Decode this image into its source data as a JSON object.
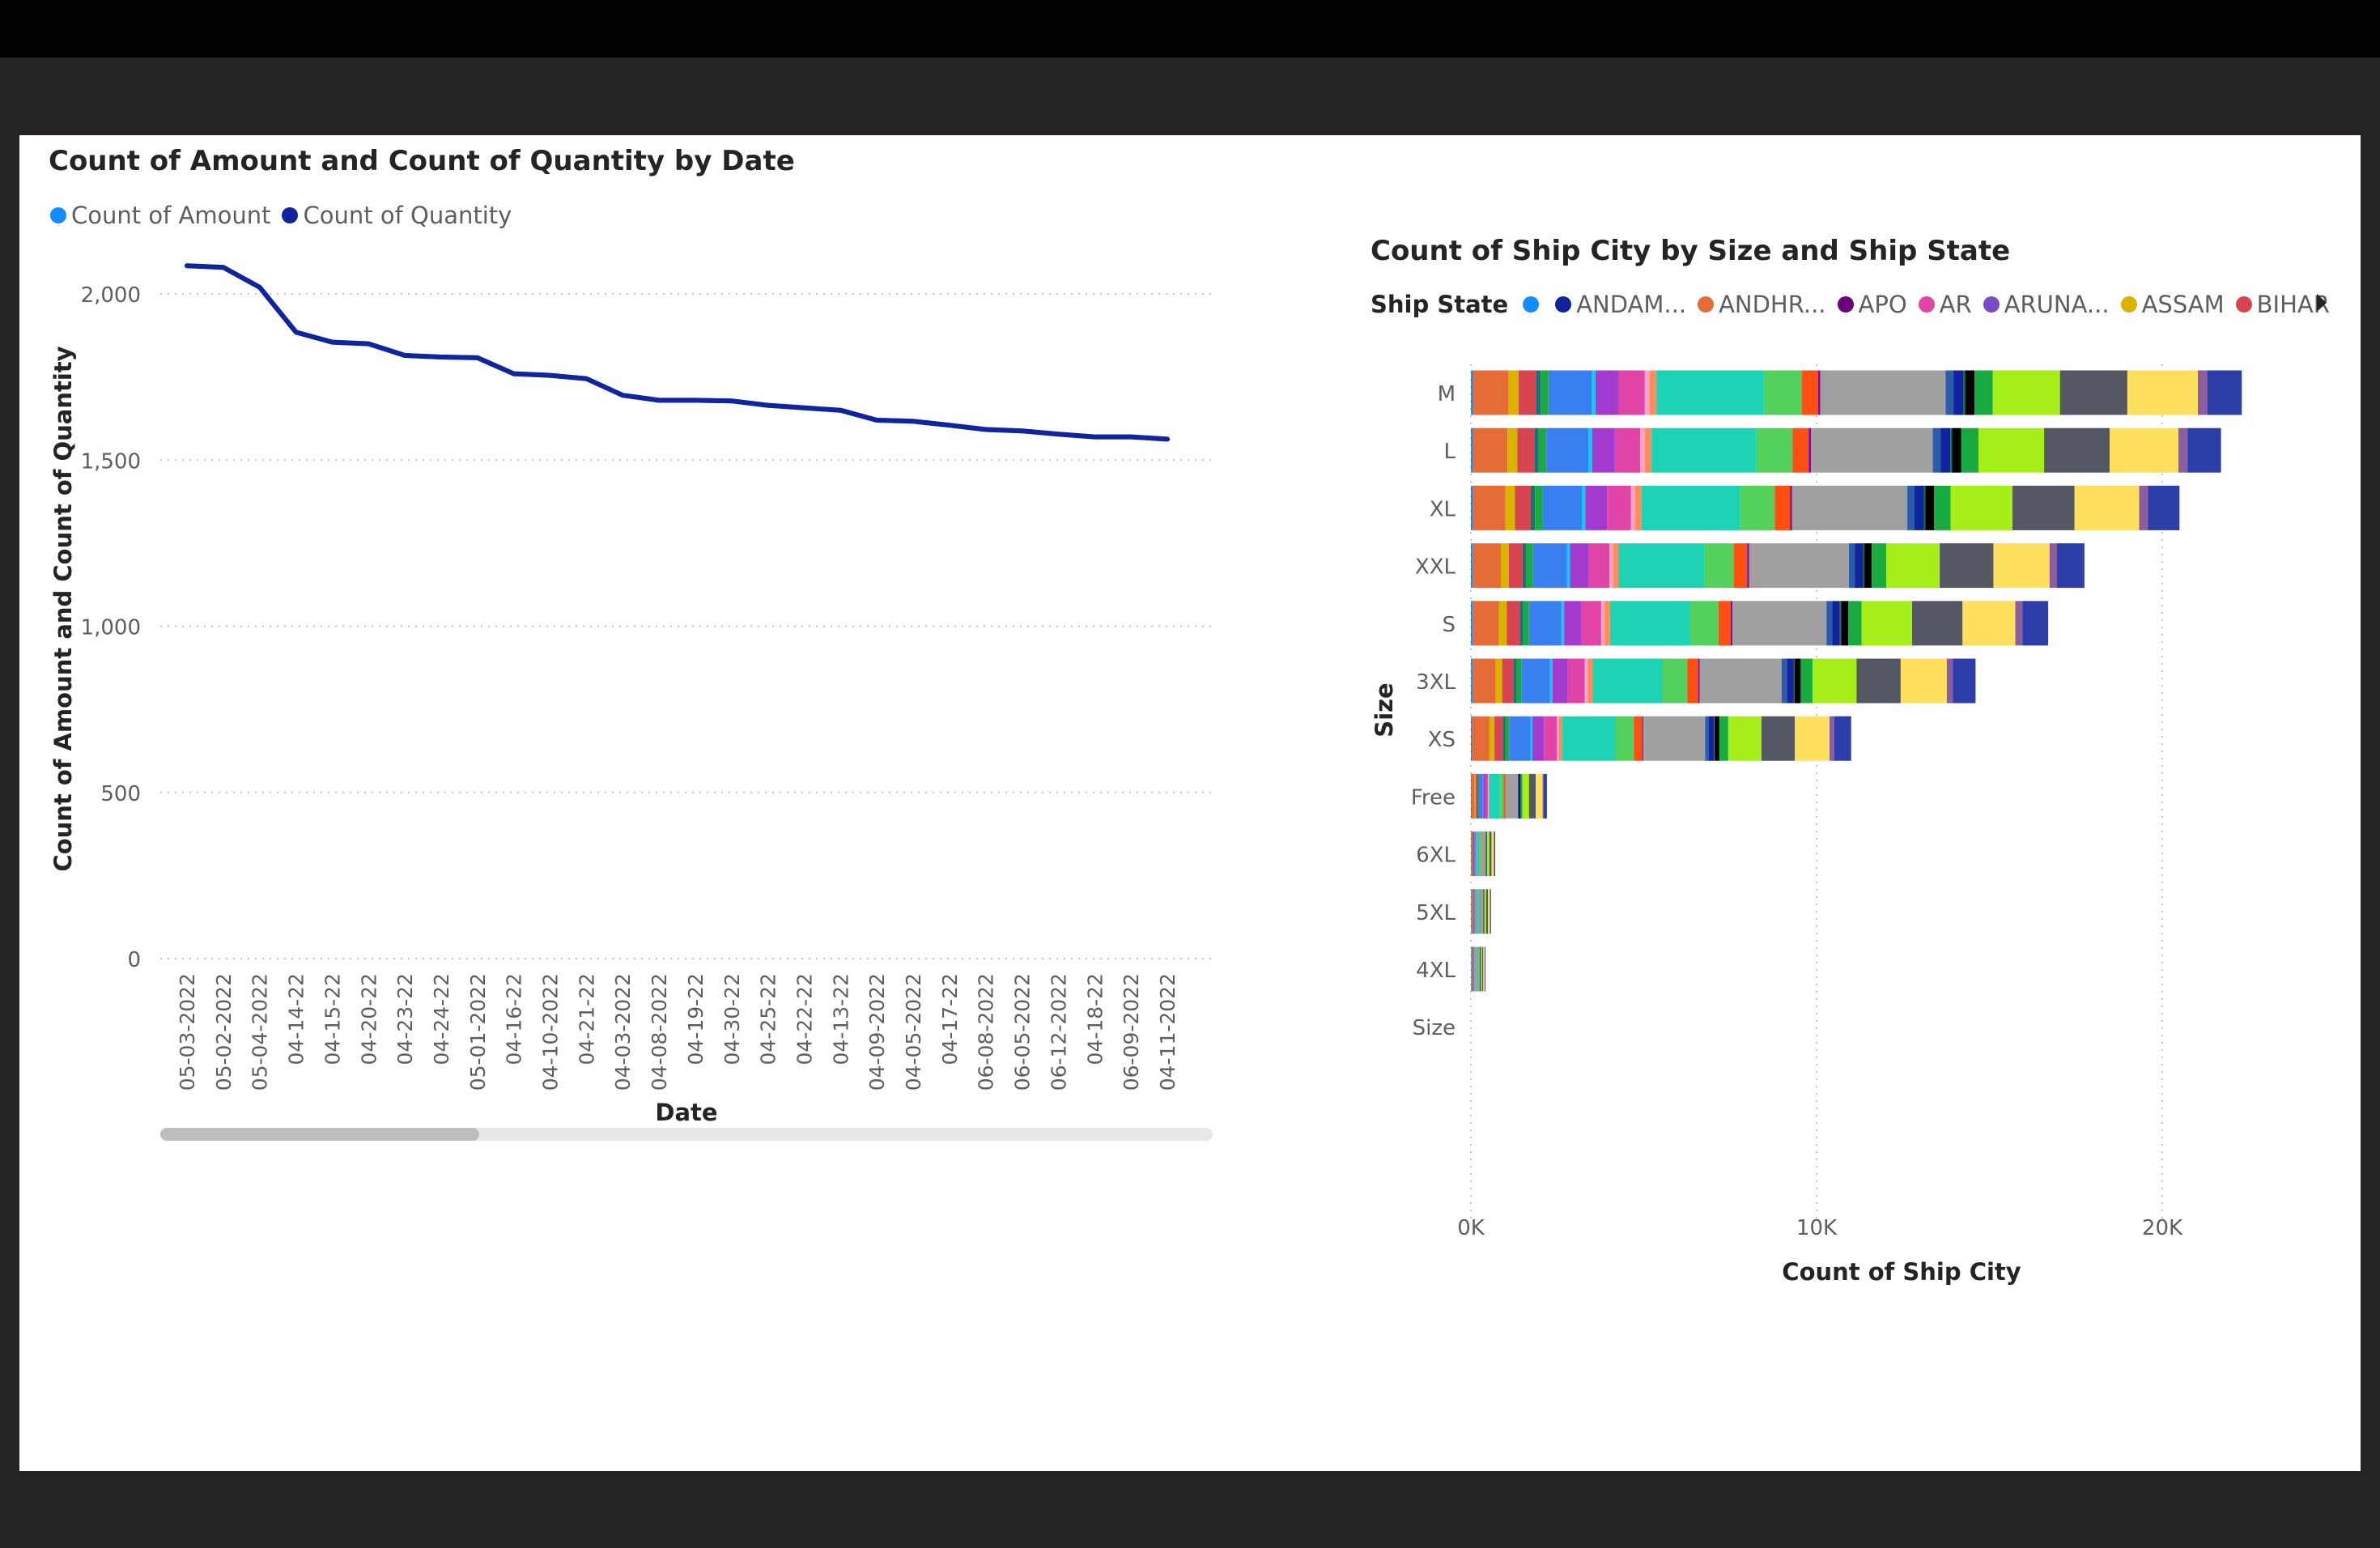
{
  "charts": {
    "line": {
      "title": "Count of Amount and Count of Quantity by Date",
      "legend": [
        {
          "label": "Count of Amount",
          "color": "#118dff"
        },
        {
          "label": "Count of Quantity",
          "color": "#12239e"
        }
      ]
    },
    "bar": {
      "title": "Count of Ship City by Size and Ship State",
      "legend_title": "Ship State",
      "legend": [
        {
          "label": "",
          "color": "#118dff"
        },
        {
          "label": "ANDAM...",
          "color": "#12239e"
        },
        {
          "label": "ANDHR...",
          "color": "#e66c37"
        },
        {
          "label": "APO",
          "color": "#6b007b"
        },
        {
          "label": "AR",
          "color": "#e044a7"
        },
        {
          "label": "ARUNA...",
          "color": "#744ec2"
        },
        {
          "label": "ASSAM",
          "color": "#d9b300"
        },
        {
          "label": "BIHAR",
          "color": "#d64550"
        }
      ]
    }
  },
  "chart_data": [
    {
      "type": "line",
      "title": "Count of Amount and Count of Quantity by Date",
      "xlabel": "Date",
      "ylabel": "Count of Amount and Count of Quantity",
      "ylim": [
        0,
        2100
      ],
      "yticks": [
        "0",
        "500",
        "1,000",
        "1,500",
        "2,000"
      ],
      "grid": true,
      "legend_position": "top-left",
      "categories": [
        "05-03-2022",
        "05-02-2022",
        "05-04-2022",
        "04-14-22",
        "04-15-22",
        "04-20-22",
        "04-23-22",
        "04-24-22",
        "05-01-2022",
        "04-16-22",
        "04-10-2022",
        "04-21-22",
        "04-03-2022",
        "04-08-2022",
        "04-19-22",
        "04-30-22",
        "04-25-22",
        "04-22-22",
        "04-13-22",
        "04-09-2022",
        "04-05-2022",
        "04-17-22",
        "06-08-2022",
        "06-05-2022",
        "06-12-2022",
        "04-18-22",
        "06-09-2022",
        "04-11-2022"
      ],
      "series": [
        {
          "name": "Count of Amount",
          "color": "#118dff",
          "values": [
            2085,
            2080,
            2020,
            1885,
            1855,
            1850,
            1815,
            1810,
            1808,
            1760,
            1755,
            1745,
            1695,
            1680,
            1680,
            1678,
            1665,
            1657,
            1650,
            1620,
            1617,
            1605,
            1592,
            1588,
            1578,
            1570,
            1570,
            1563
          ]
        },
        {
          "name": "Count of Quantity",
          "color": "#12239e",
          "values": [
            2085,
            2080,
            2020,
            1885,
            1855,
            1850,
            1815,
            1810,
            1808,
            1760,
            1755,
            1745,
            1695,
            1680,
            1680,
            1678,
            1665,
            1657,
            1650,
            1620,
            1617,
            1605,
            1592,
            1588,
            1578,
            1570,
            1570,
            1563
          ]
        }
      ]
    },
    {
      "type": "bar",
      "orientation": "horizontal",
      "stacked": true,
      "title": "Count of Ship City by Size and Ship State",
      "xlabel": "Count of Ship City",
      "ylabel": "Size",
      "xlim": [
        0,
        22500
      ],
      "xticks": [
        "0K",
        "10K",
        "20K"
      ],
      "grid": true,
      "legend_position": "top",
      "categories": [
        "M",
        "L",
        "XL",
        "XXL",
        "S",
        "3XL",
        "XS",
        "Free",
        "6XL",
        "5XL",
        "4XL",
        "Size"
      ],
      "totals": [
        22300,
        21700,
        20500,
        17750,
        16700,
        14600,
        11000,
        2200,
        700,
        580,
        420,
        0
      ],
      "segment_colors": [
        "#118dff",
        "#e66c37",
        "#d9b300",
        "#d64550",
        "#197278",
        "#1aab40",
        "#3a7ff0",
        "#15c6f4",
        "#a43bd1",
        "#e044a7",
        "#f5a3c7",
        "#ff8c5a",
        "#1ed2b4",
        "#53d15c",
        "#ff4f12",
        "#8a0b8c",
        "#a0a0a0",
        "#2a5caa",
        "#12239e",
        "#0f7a2e",
        "#000000",
        "#1aab40",
        "#a5ee19",
        "#545864",
        "#ffdf5e",
        "#8c5e9e",
        "#2e3ea8"
      ],
      "segment_shares": [
        0.003,
        0.045,
        0.013,
        0.022,
        0.006,
        0.01,
        0.055,
        0.005,
        0.03,
        0.033,
        0.006,
        0.009,
        0.137,
        0.048,
        0.021,
        0.003,
        0.16,
        0.01,
        0.013,
        0.002,
        0.012,
        0.023,
        0.086,
        0.086,
        0.09,
        0.012,
        0.044
      ]
    }
  ]
}
